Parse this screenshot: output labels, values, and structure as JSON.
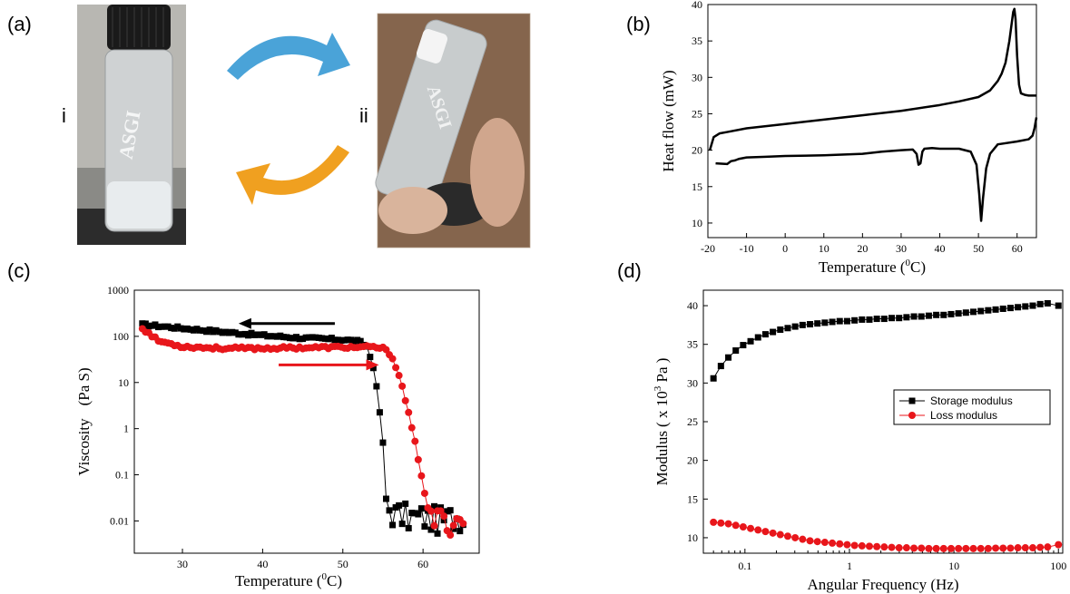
{
  "panels": {
    "a": {
      "label": "(a)",
      "photo_i": "i",
      "photo_ii": "ii",
      "vial_text": "ASGI"
    },
    "b": {
      "label": "(b)"
    },
    "c": {
      "label": "(c)"
    },
    "d": {
      "label": "(d)"
    }
  },
  "colors": {
    "black_series": "#000000",
    "red_series": "#e8161b",
    "arrow_blue": "#4aa3d8",
    "arrow_orange": "#f0a020"
  },
  "chart_data": [
    {
      "id": "b",
      "type": "line",
      "xlabel": "Temperature (",
      "xlabel_sup": "0",
      "xlabel_unit": "C)",
      "ylabel": "Heat flow (mW)",
      "xlim": [
        -20,
        65
      ],
      "ylim": [
        8,
        40
      ],
      "xticks": [
        -20,
        -10,
        0,
        10,
        20,
        30,
        40,
        50,
        60
      ],
      "yticks": [
        10,
        15,
        20,
        25,
        30,
        35,
        40
      ],
      "series": [
        {
          "x": [
            -19.5,
            -18.5,
            -17,
            -15,
            -10,
            0,
            10,
            20,
            30,
            40,
            45,
            50,
            53,
            55,
            56,
            57,
            57.5,
            58,
            58.5,
            59,
            59.3,
            59.6,
            60,
            60.5,
            61,
            62,
            63,
            65
          ],
          "y": [
            20,
            21.8,
            22.3,
            22.5,
            23,
            23.6,
            24.2,
            24.8,
            25.4,
            26.2,
            26.7,
            27.3,
            28.2,
            29.5,
            30.5,
            32,
            33.5,
            35,
            37,
            39,
            39.4,
            38,
            33,
            29,
            27.8,
            27.6,
            27.5,
            27.5
          ]
        },
        {
          "x": [
            -18,
            -15,
            -14,
            -13,
            -12,
            -10,
            -5,
            0,
            10,
            20,
            25,
            30,
            33,
            34,
            34.5,
            35,
            35.5,
            36,
            38,
            40,
            45,
            48,
            49.5,
            50.2,
            50.7,
            51.2,
            52,
            53,
            55,
            60,
            63,
            64,
            64.5,
            65
          ],
          "y": [
            18.2,
            18.1,
            18.5,
            18.6,
            18.8,
            19,
            19.1,
            19.2,
            19.3,
            19.5,
            19.8,
            20,
            20.1,
            19.5,
            18,
            18.2,
            19.8,
            20.2,
            20.3,
            20.2,
            20.2,
            19.8,
            18,
            14,
            10.3,
            13.5,
            17.5,
            19.5,
            20.8,
            21.2,
            21.5,
            22,
            23,
            24.5
          ]
        }
      ]
    },
    {
      "id": "c",
      "type": "scatter",
      "xlabel": "Temperature (",
      "xlabel_sup": "0",
      "xlabel_unit": "C)",
      "ylabel": "Viscosity",
      "ylabel_unit": "(Pa S)",
      "xlim": [
        24,
        67
      ],
      "ylim_log": [
        0.002,
        1000
      ],
      "xticks": [
        30,
        40,
        50,
        60
      ],
      "yticks": [
        0.01,
        0.1,
        1,
        10,
        100,
        1000
      ],
      "ytick_labels": [
        "0.01",
        "0.1",
        "1",
        "10",
        "100",
        "1000"
      ],
      "black_control": [
        [
          25,
          180
        ],
        [
          30,
          150
        ],
        [
          35,
          125
        ],
        [
          40,
          105
        ],
        [
          45,
          92
        ],
        [
          50,
          85
        ],
        [
          52,
          78
        ],
        [
          53,
          60
        ],
        [
          53.8,
          22
        ],
        [
          54.3,
          6
        ],
        [
          54.8,
          1.2
        ],
        [
          55.1,
          0.3
        ],
        [
          55.4,
          0.03
        ],
        [
          56,
          0.015
        ],
        [
          58,
          0.012
        ],
        [
          60,
          0.012
        ],
        [
          62,
          0.01
        ],
        [
          64,
          0.012
        ],
        [
          65,
          0.012
        ]
      ],
      "red_control": [
        [
          25,
          150
        ],
        [
          27,
          80
        ],
        [
          30,
          60
        ],
        [
          35,
          55
        ],
        [
          40,
          55
        ],
        [
          45,
          57
        ],
        [
          50,
          58
        ],
        [
          54,
          58
        ],
        [
          55,
          55
        ],
        [
          56,
          40
        ],
        [
          57,
          15
        ],
        [
          58,
          3
        ],
        [
          59,
          0.5
        ],
        [
          59.8,
          0.1
        ],
        [
          60.5,
          0.02
        ],
        [
          61,
          0.012
        ],
        [
          62,
          0.01
        ],
        [
          63,
          0.009
        ],
        [
          64,
          0.011
        ],
        [
          65,
          0.01
        ]
      ],
      "arrow_left": {
        "x1": 49,
        "x2": 37,
        "y": 190
      },
      "arrow_right": {
        "x1": 42,
        "x2": 54.5,
        "y": 24
      }
    },
    {
      "id": "d",
      "type": "line",
      "xlabel": "Angular Frequency (Hz)",
      "ylabel": "Modulus",
      "ylabel_unit_pre": "( x 10",
      "ylabel_sup": "3",
      "ylabel_unit_post": " Pa )",
      "xscale": "log",
      "xlim": [
        0.04,
        110
      ],
      "ylim": [
        8,
        42
      ],
      "xticks": [
        0.1,
        1,
        10,
        100
      ],
      "xtick_labels": [
        "0.1",
        "1",
        "10",
        "100"
      ],
      "yticks": [
        10,
        15,
        20,
        25,
        30,
        35,
        40
      ],
      "legend_position": "right",
      "series": [
        {
          "name": "Storage modulus",
          "color": "#000000",
          "marker": "square",
          "x": [
            0.05,
            0.0589,
            0.0694,
            0.0817,
            0.0962,
            0.1133,
            0.1335,
            0.1572,
            0.1851,
            0.218,
            0.2568,
            0.3024,
            0.3562,
            0.4195,
            0.4941,
            0.5819,
            0.6854,
            0.8072,
            0.9507,
            1.12,
            1.319,
            1.553,
            1.829,
            2.154,
            2.537,
            2.988,
            3.52,
            4.145,
            4.882,
            5.75,
            6.772,
            7.976,
            9.394,
            11.06,
            13.03,
            15.35,
            18.08,
            21.29,
            25.07,
            29.53,
            34.78,
            40.96,
            48.25,
            56.82,
            66.93,
            78.83,
            100
          ],
          "y": [
            30.6,
            32.2,
            33.3,
            34.2,
            34.9,
            35.4,
            35.9,
            36.3,
            36.6,
            36.9,
            37.1,
            37.3,
            37.5,
            37.6,
            37.7,
            37.8,
            37.9,
            38.0,
            38.0,
            38.1,
            38.2,
            38.2,
            38.3,
            38.3,
            38.4,
            38.4,
            38.5,
            38.6,
            38.6,
            38.7,
            38.8,
            38.8,
            38.9,
            39.0,
            39.1,
            39.2,
            39.3,
            39.4,
            39.5,
            39.6,
            39.7,
            39.8,
            39.9,
            40.0,
            40.2,
            40.3,
            40.0
          ]
        },
        {
          "name": "Loss modulus",
          "color": "#e8161b",
          "marker": "circle",
          "x": [
            0.05,
            0.0589,
            0.0694,
            0.0817,
            0.0962,
            0.1133,
            0.1335,
            0.1572,
            0.1851,
            0.218,
            0.2568,
            0.3024,
            0.3562,
            0.4195,
            0.4941,
            0.5819,
            0.6854,
            0.8072,
            0.9507,
            1.12,
            1.319,
            1.553,
            1.829,
            2.154,
            2.537,
            2.988,
            3.52,
            4.145,
            4.882,
            5.75,
            6.772,
            7.976,
            9.394,
            11.06,
            13.03,
            15.35,
            18.08,
            21.29,
            25.07,
            29.53,
            34.78,
            40.96,
            48.25,
            56.82,
            66.93,
            78.83,
            100
          ],
          "y": [
            12.0,
            11.9,
            11.8,
            11.6,
            11.4,
            11.2,
            11.0,
            10.8,
            10.6,
            10.4,
            10.2,
            10.0,
            9.8,
            9.6,
            9.5,
            9.4,
            9.3,
            9.2,
            9.1,
            9.0,
            8.95,
            8.9,
            8.85,
            8.8,
            8.75,
            8.7,
            8.7,
            8.65,
            8.65,
            8.6,
            8.6,
            8.6,
            8.6,
            8.6,
            8.6,
            8.6,
            8.6,
            8.6,
            8.65,
            8.65,
            8.65,
            8.7,
            8.7,
            8.7,
            8.75,
            8.8,
            9.1
          ]
        }
      ]
    }
  ]
}
